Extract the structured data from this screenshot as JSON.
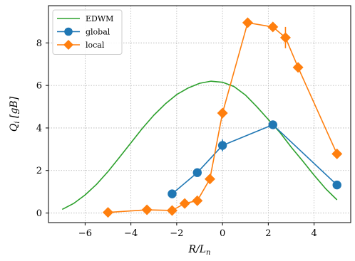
{
  "chart_data": {
    "type": "line",
    "xlabel": "R/L_n",
    "ylabel": "Q_i [gB]",
    "xlim": [
      -7.6,
      5.6
    ],
    "ylim": [
      -0.45,
      9.75
    ],
    "xticks": [
      -6,
      -4,
      -2,
      0,
      2,
      4
    ],
    "yticks": [
      0,
      2,
      4,
      6,
      8
    ],
    "grid": true,
    "legend_position": "top-left",
    "series": [
      {
        "name": "EDWM",
        "kind": "curve",
        "color": "#2ca02c",
        "x": [
          -7.0,
          -6.5,
          -6.0,
          -5.5,
          -5.0,
          -4.5,
          -4.0,
          -3.5,
          -3.0,
          -2.5,
          -2.0,
          -1.5,
          -1.0,
          -0.5,
          0.0,
          0.5,
          1.0,
          1.5,
          2.0,
          2.5,
          3.0,
          3.5,
          4.0,
          4.5,
          5.0
        ],
        "values": [
          0.17,
          0.45,
          0.85,
          1.35,
          1.95,
          2.62,
          3.3,
          3.98,
          4.6,
          5.13,
          5.57,
          5.88,
          6.1,
          6.2,
          6.15,
          5.95,
          5.55,
          5.0,
          4.4,
          3.8,
          3.1,
          2.45,
          1.78,
          1.15,
          0.62
        ]
      },
      {
        "name": "global",
        "kind": "markers",
        "color": "#1f77b4",
        "marker": "circle",
        "x": [
          -2.2,
          -1.1,
          0.0,
          2.2,
          5.0
        ],
        "values": [
          0.9,
          1.9,
          3.18,
          4.15,
          1.32
        ],
        "errors": [
          0.05,
          0.08,
          0.28,
          0.2,
          0.05
        ]
      },
      {
        "name": "local",
        "kind": "markers",
        "color": "#ff7f0e",
        "marker": "diamond",
        "x": [
          -5.0,
          -3.3,
          -2.2,
          -1.65,
          -1.1,
          -0.55,
          0.0,
          1.1,
          2.2,
          2.75,
          3.3,
          5.0
        ],
        "values": [
          0.03,
          0.15,
          0.12,
          0.45,
          0.58,
          1.6,
          4.7,
          8.95,
          8.75,
          8.25,
          6.85,
          2.78
        ],
        "errors": [
          0.04,
          0.04,
          0.04,
          0.06,
          0.06,
          0.1,
          0.15,
          0.12,
          0.15,
          0.5,
          0.12,
          0.1
        ]
      }
    ]
  }
}
